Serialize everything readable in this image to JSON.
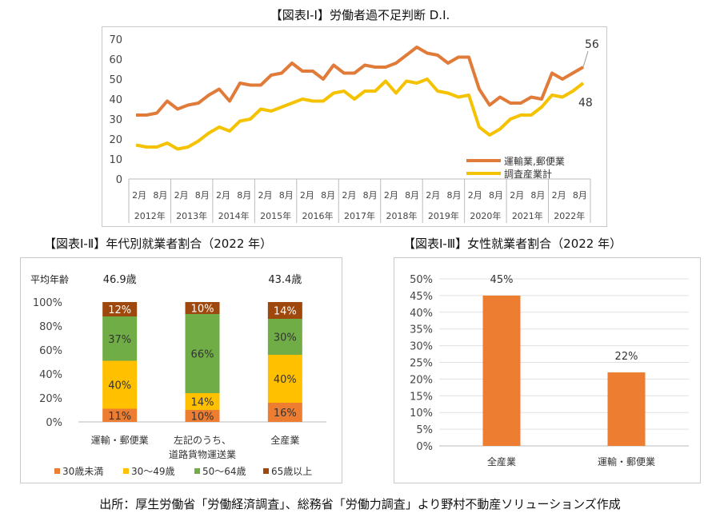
{
  "chart1": {
    "title": "【図表Ⅰ-Ⅰ】労働者過不足判断 D.I.",
    "yticks": [
      "0",
      "10",
      "20",
      "30",
      "40",
      "50",
      "60",
      "70"
    ],
    "ylim": [
      0,
      70
    ],
    "chart_data": {
      "type": "line",
      "x_labels": [
        "2月",
        "8月",
        "2月",
        "8月",
        "2月",
        "8月",
        "2月",
        "8月",
        "2月",
        "8月",
        "2月",
        "8月",
        "2月",
        "8月",
        "2月",
        "8月",
        "2月",
        "8月",
        "2月",
        "8月",
        "2月",
        "8月"
      ],
      "years": [
        "2012年",
        "2013年",
        "2014年",
        "2015年",
        "2016年",
        "2017年",
        "2018年",
        "2019年",
        "2020年",
        "2021年",
        "2022年"
      ],
      "series": [
        {
          "name": "運輸業,郵便業",
          "color": "#E07B39",
          "values": [
            32,
            32,
            33,
            39,
            35,
            37,
            38,
            42,
            45,
            39,
            48,
            47,
            47,
            52,
            53,
            58,
            54,
            54,
            50,
            57,
            53,
            53,
            57,
            56,
            56,
            58,
            62,
            66,
            63,
            62,
            58,
            61,
            61,
            45,
            37,
            41,
            38,
            38,
            41,
            40,
            53,
            50,
            53,
            56
          ]
        },
        {
          "name": "調査産業計",
          "color": "#F5C200",
          "values": [
            17,
            16,
            16,
            18,
            15,
            16,
            19,
            23,
            26,
            24,
            29,
            30,
            35,
            34,
            36,
            38,
            40,
            39,
            39,
            43,
            44,
            40,
            44,
            44,
            49,
            43,
            49,
            48,
            50,
            44,
            43,
            41,
            42,
            26,
            22,
            25,
            30,
            32,
            32,
            36,
            42,
            41,
            44,
            48
          ]
        }
      ],
      "end_labels": [
        "56",
        "48"
      ]
    }
  },
  "chart2": {
    "title": "【図表Ⅰ-Ⅱ】年代別就業者割合（2022 年）",
    "avg_age_label": "平均年齢",
    "avg_ages": [
      "46.9歳",
      "",
      "43.4歳"
    ],
    "yticks": [
      "0%",
      "20%",
      "40%",
      "60%",
      "80%",
      "100%"
    ],
    "chart_data": {
      "type": "bar",
      "stacked": true,
      "categories": [
        "運輸・郵便業",
        "左記のうち、道路貨物運送業",
        "全産業"
      ],
      "category_lines": [
        [
          "運輸・郵便業"
        ],
        [
          "左記のうち、",
          "道路貨物運送業"
        ],
        [
          "全産業"
        ]
      ],
      "series": [
        {
          "name": "30歳未満",
          "color": "#ED7D31",
          "values": [
            11,
            10,
            16
          ],
          "labels": [
            "11%",
            "10%",
            "16%"
          ]
        },
        {
          "name": "30～49歳",
          "color": "#FFC000",
          "values": [
            40,
            14,
            40
          ],
          "labels": [
            "40%",
            "14%",
            "40%"
          ]
        },
        {
          "name": "50～64歳",
          "color": "#70AD47",
          "values": [
            37,
            66,
            30
          ],
          "labels": [
            "37%",
            "66%",
            "30%"
          ]
        },
        {
          "name": "65歳以上",
          "color": "#9E480E",
          "values": [
            12,
            10,
            14
          ],
          "labels": [
            "12%",
            "10%",
            "14%"
          ]
        }
      ]
    }
  },
  "chart3": {
    "title": "【図表Ⅰ-Ⅲ】女性就業者割合（2022 年）",
    "yticks": [
      "0%",
      "5%",
      "10%",
      "15%",
      "20%",
      "25%",
      "30%",
      "35%",
      "40%",
      "45%",
      "50%"
    ],
    "chart_data": {
      "type": "bar",
      "categories": [
        "全産業",
        "運輸・郵便業"
      ],
      "values": [
        45,
        22
      ],
      "labels": [
        "45%",
        "22%"
      ],
      "color": "#ED7D31",
      "ylim": [
        0,
        50
      ]
    }
  },
  "footer": "出所：厚生労働省「労働経済調査」、総務省「労働力調査」より野村不動産ソリューションズ作成"
}
